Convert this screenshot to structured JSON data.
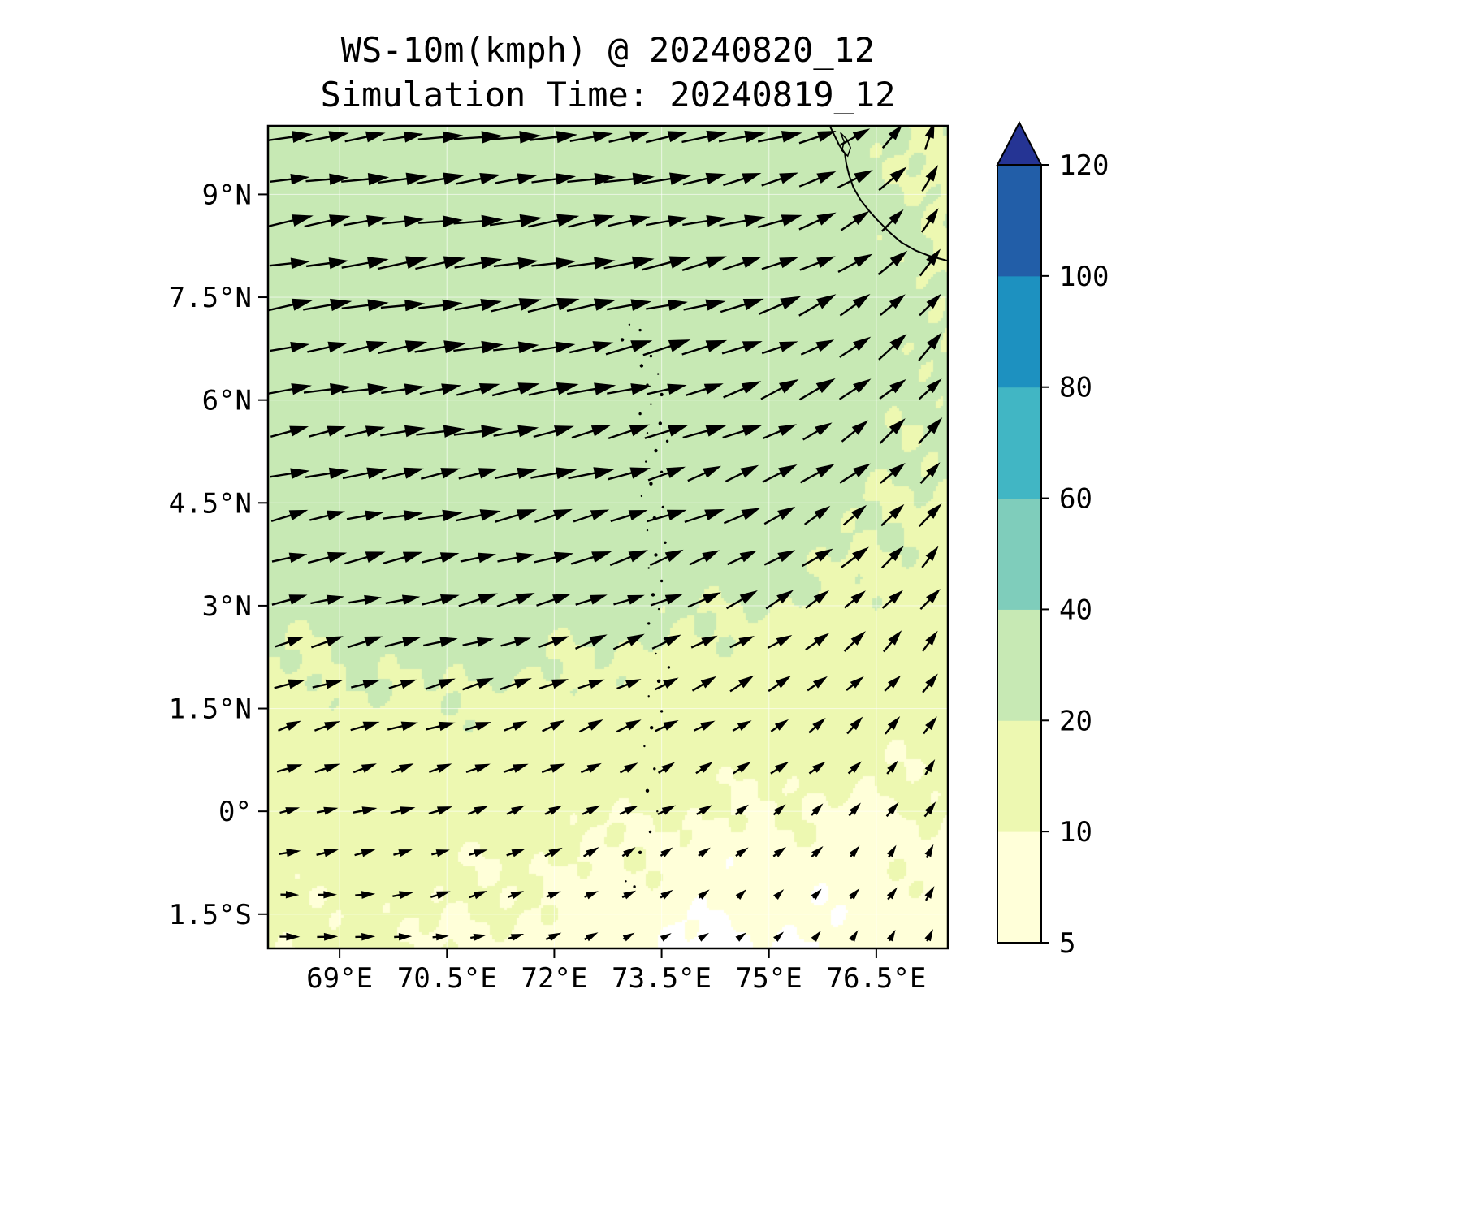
{
  "figure": {
    "title_line1": "WS-10m(kmph) @ 20240820_12",
    "title_line2": "Simulation Time: 20240819_12"
  },
  "chart_data": {
    "type": "quiver_map",
    "title": "WS-10m(kmph) @ 20240820_12",
    "subtitle": "Simulation Time: 20240819_12",
    "variable": "10m wind speed",
    "units": "kmph",
    "valid_time": "20240820_12",
    "simulation_time": "20240819_12",
    "lon_range": [
      68.0,
      77.5
    ],
    "lat_range": [
      -2.0,
      10.0
    ],
    "grid_on": true,
    "x_ticks": [
      {
        "value": 69.0,
        "label": "69°E"
      },
      {
        "value": 70.5,
        "label": "70.5°E"
      },
      {
        "value": 72.0,
        "label": "72°E"
      },
      {
        "value": 73.5,
        "label": "73.5°E"
      },
      {
        "value": 75.0,
        "label": "75°E"
      },
      {
        "value": 76.5,
        "label": "76.5°E"
      }
    ],
    "y_ticks": [
      {
        "value": 9.0,
        "label": "9°N"
      },
      {
        "value": 7.5,
        "label": "7.5°N"
      },
      {
        "value": 6.0,
        "label": "6°N"
      },
      {
        "value": 4.5,
        "label": "4.5°N"
      },
      {
        "value": 3.0,
        "label": "3°N"
      },
      {
        "value": 1.5,
        "label": "1.5°N"
      },
      {
        "value": 0.0,
        "label": "0°"
      },
      {
        "value": -1.5,
        "label": "1.5°S"
      }
    ],
    "colorbar": {
      "levels": [
        5,
        10,
        20,
        40,
        60,
        80,
        100,
        120
      ],
      "tick_labels": [
        "5",
        "10",
        "20",
        "40",
        "60",
        "80",
        "100",
        "120"
      ],
      "colors": [
        "#ffffd9",
        "#edf8b1",
        "#c7e9b4",
        "#7fcdbb",
        "#41b6c4",
        "#1d91c0",
        "#225ea8"
      ],
      "over_color": "#253494",
      "under_color": "#ffffff"
    },
    "wind_grid": {
      "lons": [
        68.3,
        69.3,
        70.3,
        71.3,
        72.3,
        73.3,
        74.3,
        75.3,
        76.3,
        77.3
      ],
      "lats": [
        9.8,
        8.5,
        7.2,
        5.9,
        4.6,
        3.3,
        2.0,
        0.7,
        -0.6,
        -1.9
      ],
      "angle_deg": [
        [
          8,
          8,
          6,
          8,
          8,
          10,
          12,
          16,
          30,
          70
        ],
        [
          10,
          9,
          8,
          8,
          10,
          10,
          13,
          18,
          32,
          55
        ],
        [
          10,
          10,
          9,
          10,
          11,
          13,
          16,
          22,
          35,
          48
        ],
        [
          12,
          10,
          10,
          11,
          13,
          15,
          18,
          26,
          36,
          46
        ],
        [
          13,
          12,
          11,
          13,
          15,
          18,
          22,
          28,
          38,
          48
        ],
        [
          15,
          13,
          13,
          15,
          18,
          21,
          25,
          31,
          40,
          50
        ],
        [
          18,
          15,
          15,
          18,
          21,
          25,
          28,
          33,
          43,
          52
        ],
        [
          20,
          18,
          18,
          21,
          25,
          28,
          31,
          36,
          46,
          55
        ],
        [
          8,
          12,
          16,
          22,
          28,
          31,
          36,
          41,
          50,
          60
        ],
        [
          -5,
          0,
          8,
          15,
          22,
          30,
          38,
          46,
          55,
          64
        ]
      ],
      "speed_kmph": [
        [
          28,
          29,
          30,
          30,
          30,
          30,
          29,
          27,
          23,
          18
        ],
        [
          29,
          30,
          31,
          32,
          32,
          31,
          29,
          27,
          23,
          19
        ],
        [
          29,
          31,
          32,
          32,
          32,
          31,
          29,
          27,
          24,
          21
        ],
        [
          27,
          29,
          30,
          31,
          30,
          29,
          27,
          25,
          23,
          21
        ],
        [
          25,
          27,
          28,
          28,
          28,
          27,
          25,
          23,
          21,
          19
        ],
        [
          23,
          24,
          25,
          25,
          24,
          23,
          22,
          21,
          19,
          17
        ],
        [
          19,
          20,
          21,
          20,
          19,
          18,
          17,
          16,
          15,
          15
        ],
        [
          15,
          16,
          16,
          15,
          14,
          13,
          12,
          12,
          11,
          11
        ],
        [
          12,
          13,
          12,
          11,
          10,
          9,
          8,
          8,
          8,
          9
        ],
        [
          11,
          11,
          10,
          9,
          8,
          6,
          4,
          5,
          6,
          8
        ]
      ]
    },
    "quiver": {
      "cols": 18,
      "rows": 20,
      "color": "#000000"
    },
    "map_features": {
      "coastline": [
        [
          75.85,
          10.0
        ],
        [
          75.92,
          9.85
        ],
        [
          75.98,
          9.72
        ],
        [
          76.06,
          9.6
        ],
        [
          76.08,
          9.45
        ],
        [
          76.12,
          9.28
        ],
        [
          76.18,
          9.1
        ],
        [
          76.28,
          8.92
        ],
        [
          76.4,
          8.76
        ],
        [
          76.52,
          8.62
        ],
        [
          76.68,
          8.45
        ],
        [
          76.85,
          8.3
        ],
        [
          77.05,
          8.18
        ],
        [
          77.25,
          8.1
        ],
        [
          77.5,
          8.03
        ]
      ],
      "lake": [
        [
          76.0,
          9.9
        ],
        [
          76.09,
          9.8
        ],
        [
          76.14,
          9.68
        ],
        [
          76.1,
          9.56
        ],
        [
          76.02,
          9.64
        ],
        [
          76.05,
          9.77
        ],
        [
          76.0,
          9.9
        ]
      ],
      "islands": [
        [
          73.05,
          7.1
        ],
        [
          73.2,
          7.02
        ],
        [
          72.95,
          6.88
        ],
        [
          73.15,
          6.76
        ],
        [
          73.35,
          6.64
        ],
        [
          73.22,
          6.5
        ],
        [
          73.45,
          6.38
        ],
        [
          73.3,
          6.22
        ],
        [
          73.5,
          6.08
        ],
        [
          73.35,
          5.94
        ],
        [
          73.2,
          5.8
        ],
        [
          73.48,
          5.66
        ],
        [
          73.3,
          5.52
        ],
        [
          73.58,
          5.4
        ],
        [
          73.42,
          5.26
        ],
        [
          73.28,
          5.1
        ],
        [
          73.5,
          4.95
        ],
        [
          73.35,
          4.78
        ],
        [
          73.22,
          4.6
        ],
        [
          73.52,
          4.44
        ],
        [
          73.4,
          4.28
        ],
        [
          73.3,
          4.1
        ],
        [
          73.55,
          3.92
        ],
        [
          73.42,
          3.74
        ],
        [
          73.32,
          3.55
        ],
        [
          73.5,
          3.36
        ],
        [
          73.38,
          3.16
        ],
        [
          73.46,
          2.95
        ],
        [
          73.32,
          2.74
        ],
        [
          73.55,
          2.52
        ],
        [
          73.42,
          2.3
        ],
        [
          73.6,
          2.1
        ],
        [
          73.46,
          1.9
        ],
        [
          73.32,
          1.68
        ],
        [
          73.5,
          1.46
        ],
        [
          73.36,
          1.22
        ],
        [
          73.26,
          0.95
        ],
        [
          73.4,
          0.62
        ],
        [
          73.3,
          0.3
        ],
        [
          73.44,
          0.0
        ],
        [
          73.34,
          -0.3
        ],
        [
          73.2,
          -0.6
        ],
        [
          73.0,
          -1.02
        ],
        [
          73.12,
          -1.1
        ]
      ]
    }
  }
}
